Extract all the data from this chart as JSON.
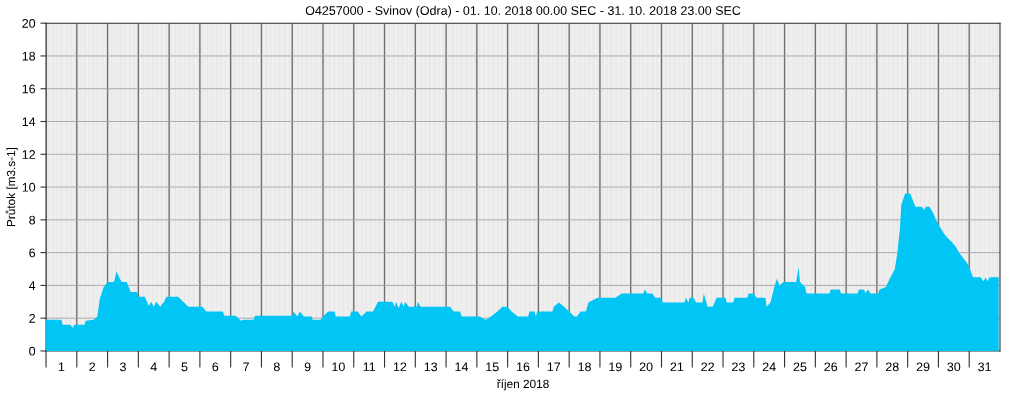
{
  "chart_data": {
    "type": "area",
    "title": "O4257000 - Svinov (Odra) - 01. 10. 2018 00.00 SEC - 31. 10. 2018 23.00 SEC",
    "xlabel": "říjen 2018",
    "ylabel": "Průtok [m3.s-1]",
    "series": [
      {
        "color": "#00c5f5",
        "x": [
          "2018-10-01T00:00",
          "2018-10-01T12:00",
          "2018-10-01T13:00",
          "2018-10-01T19:00",
          "2018-10-01T21:00",
          "2018-10-01T22:00",
          "2018-10-02T06:00",
          "2018-10-02T07:00",
          "2018-10-02T13:00",
          "2018-10-02T16:00",
          "2018-10-02T18:00",
          "2018-10-02T21:00",
          "2018-10-03T00:00",
          "2018-10-03T05:00",
          "2018-10-03T07:00",
          "2018-10-03T09:00",
          "2018-10-03T11:00",
          "2018-10-03T15:00",
          "2018-10-03T18:00",
          "2018-10-03T23:00",
          "2018-10-04T00:00",
          "2018-10-04T05:00",
          "2018-10-04T07:00",
          "2018-10-04T08:00",
          "2018-10-04T10:00",
          "2018-10-04T12:00",
          "2018-10-04T14:00",
          "2018-10-04T17:00",
          "2018-10-04T20:00",
          "2018-10-04T22:00",
          "2018-10-05T07:00",
          "2018-10-05T11:00",
          "2018-10-05T15:00",
          "2018-10-06T02:00",
          "2018-10-06T05:00",
          "2018-10-06T18:00",
          "2018-10-06T19:00",
          "2018-10-07T04:00",
          "2018-10-07T08:00",
          "2018-10-07T10:00",
          "2018-10-07T18:00",
          "2018-10-07T19:00",
          "2018-10-09T00:00",
          "2018-10-09T01:00",
          "2018-10-09T04:00",
          "2018-10-09T06:00",
          "2018-10-09T09:00",
          "2018-10-09T15:00",
          "2018-10-09T16:00",
          "2018-10-09T22:00",
          "2018-10-10T00:00",
          "2018-10-10T04:00",
          "2018-10-10T09:00",
          "2018-10-10T10:00",
          "2018-10-10T21:00",
          "2018-10-10T22:00",
          "2018-10-11T03:00",
          "2018-10-11T06:00",
          "2018-10-11T10:00",
          "2018-10-11T15:00",
          "2018-10-11T19:00",
          "2018-10-12T06:00",
          "2018-10-12T08:00",
          "2018-10-12T09:00",
          "2018-10-12T11:00",
          "2018-10-12T13:00",
          "2018-10-12T15:00",
          "2018-10-12T16:00",
          "2018-10-12T19:00",
          "2018-10-13T01:00",
          "2018-10-13T02:00",
          "2018-10-13T04:00",
          "2018-10-14T03:00",
          "2018-10-14T06:00",
          "2018-10-14T11:00",
          "2018-10-14T12:00",
          "2018-10-15T02:00",
          "2018-10-15T07:00",
          "2018-10-15T11:00",
          "2018-10-15T16:00",
          "2018-10-15T20:00",
          "2018-10-16T00:00",
          "2018-10-16T03:00",
          "2018-10-16T08:00",
          "2018-10-16T16:00",
          "2018-10-16T17:00",
          "2018-10-16T21:00",
          "2018-10-16T22:00",
          "2018-10-16T23:00",
          "2018-10-17T11:00",
          "2018-10-17T12:00",
          "2018-10-17T16:00",
          "2018-10-17T20:00",
          "2018-10-18T00:00",
          "2018-10-18T04:00",
          "2018-10-18T06:00",
          "2018-10-18T09:00",
          "2018-10-18T13:00",
          "2018-10-18T15:00",
          "2018-10-18T22:00",
          "2018-10-19T12:00",
          "2018-10-19T17:00",
          "2018-10-20T10:00",
          "2018-10-20T11:00",
          "2018-10-20T13:00",
          "2018-10-20T17:00",
          "2018-10-20T19:00",
          "2018-10-21T00:00",
          "2018-10-21T01:00",
          "2018-10-21T18:00",
          "2018-10-21T19:00",
          "2018-10-21T21:00",
          "2018-10-21T22:00",
          "2018-10-22T01:00",
          "2018-10-22T03:00",
          "2018-10-22T08:00",
          "2018-10-22T09:00",
          "2018-10-22T11:00",
          "2018-10-22T12:00",
          "2018-10-22T16:00",
          "2018-10-22T19:00",
          "2018-10-23T02:00",
          "2018-10-23T03:00",
          "2018-10-23T08:00",
          "2018-10-23T09:00",
          "2018-10-23T19:00",
          "2018-10-23T20:00",
          "2018-10-24T00:00",
          "2018-10-24T02:00",
          "2018-10-24T09:00",
          "2018-10-24T10:00",
          "2018-10-24T13:00",
          "2018-10-24T16:00",
          "2018-10-24T18:00",
          "2018-10-24T20:00",
          "2018-10-24T23:00",
          "2018-10-25T09:00",
          "2018-10-25T11:00",
          "2018-10-25T12:00",
          "2018-10-25T16:00",
          "2018-10-25T17:00",
          "2018-10-26T11:00",
          "2018-10-26T12:00",
          "2018-10-26T19:00",
          "2018-10-26T20:00",
          "2018-10-27T09:00",
          "2018-10-27T10:00",
          "2018-10-27T14:00",
          "2018-10-27T15:00",
          "2018-10-27T17:00",
          "2018-10-27T19:00",
          "2018-10-28T01:00",
          "2018-10-28T02:00",
          "2018-10-28T07:00",
          "2018-10-28T10:00",
          "2018-10-28T14:00",
          "2018-10-28T16:00",
          "2018-10-28T18:00",
          "2018-10-28T19:00",
          "2018-10-28T22:00",
          "2018-10-29T02:00",
          "2018-10-29T04:00",
          "2018-10-29T06:00",
          "2018-10-29T11:00",
          "2018-10-29T13:00",
          "2018-10-29T14:00",
          "2018-10-29T17:00",
          "2018-10-29T20:00",
          "2018-10-29T22:00",
          "2018-10-30T01:00",
          "2018-10-30T04:00",
          "2018-10-30T07:00",
          "2018-10-30T11:00",
          "2018-10-30T14:00",
          "2018-10-30T16:00",
          "2018-10-30T19:00",
          "2018-10-30T22:00",
          "2018-10-31T00:00",
          "2018-10-31T03:00",
          "2018-10-31T09:00",
          "2018-10-31T11:00",
          "2018-10-31T13:00",
          "2018-10-31T14:00",
          "2018-10-31T16:00",
          "2018-10-31T23:00"
        ],
        "values": [
          1.9,
          1.9,
          1.6,
          1.6,
          1.4,
          1.6,
          1.6,
          1.85,
          1.9,
          2.1,
          3.2,
          3.9,
          4.2,
          4.2,
          4.85,
          4.5,
          4.2,
          4.2,
          3.6,
          3.6,
          3.3,
          3.3,
          2.95,
          2.75,
          3.0,
          2.7,
          3.0,
          2.7,
          3.0,
          3.3,
          3.3,
          3.0,
          2.7,
          2.7,
          2.4,
          2.4,
          2.15,
          2.15,
          1.85,
          1.9,
          1.9,
          2.15,
          2.15,
          2.4,
          2.1,
          2.4,
          2.1,
          2.1,
          1.9,
          1.9,
          2.1,
          2.4,
          2.4,
          2.1,
          2.1,
          2.4,
          2.4,
          2.1,
          2.4,
          2.4,
          3.0,
          3.0,
          2.7,
          3.0,
          2.6,
          3.0,
          2.7,
          3.0,
          2.7,
          2.7,
          3.0,
          2.7,
          2.7,
          2.4,
          2.4,
          2.1,
          2.1,
          1.9,
          2.1,
          2.4,
          2.7,
          2.7,
          2.4,
          2.1,
          2.1,
          2.4,
          2.4,
          2.1,
          2.4,
          2.4,
          2.7,
          2.95,
          2.7,
          2.4,
          2.1,
          2.1,
          2.4,
          2.4,
          2.95,
          3.25,
          3.25,
          3.5,
          3.5,
          3.75,
          3.5,
          3.5,
          3.25,
          3.25,
          2.95,
          2.95,
          3.25,
          2.95,
          3.25,
          3.25,
          2.95,
          2.95,
          3.5,
          2.95,
          2.7,
          2.7,
          3.25,
          3.25,
          2.95,
          2.95,
          3.25,
          3.25,
          3.5,
          3.5,
          3.25,
          3.25,
          2.7,
          2.95,
          3.9,
          4.4,
          4.0,
          4.2,
          4.2,
          5.1,
          4.2,
          3.9,
          3.5,
          3.5,
          3.75,
          3.75,
          3.5,
          3.5,
          3.75,
          3.75,
          3.5,
          3.75,
          3.5,
          3.5,
          3.75,
          3.9,
          4.4,
          5.0,
          6.0,
          7.5,
          8.9,
          9.6,
          9.6,
          9.2,
          8.8,
          8.8,
          8.6,
          8.8,
          8.8,
          8.4,
          8.0,
          7.6,
          7.2,
          6.9,
          6.6,
          6.3,
          6.0,
          5.7,
          5.4,
          5.1,
          4.5,
          4.5,
          4.25,
          4.5,
          4.25,
          4.5,
          4.5
        ]
      }
    ],
    "xlim": [
      "2018-10-01T00:00",
      "2018-11-01T00:00"
    ],
    "xticks": [
      {
        "value": "2018-10-01T00:00",
        "label": null
      },
      {
        "value": "2018-10-02T00:00",
        "label": null
      },
      {
        "value": "2018-10-03T00:00",
        "label": null
      },
      {
        "value": "2018-10-04T00:00",
        "label": null
      },
      {
        "value": "2018-10-05T00:00",
        "label": null
      },
      {
        "value": "2018-10-06T00:00",
        "label": null
      },
      {
        "value": "2018-10-07T00:00",
        "label": null
      },
      {
        "value": "2018-10-08T00:00",
        "label": null
      },
      {
        "value": "2018-10-09T00:00",
        "label": null
      },
      {
        "value": "2018-10-10T00:00",
        "label": null
      },
      {
        "value": "2018-10-11T00:00",
        "label": null
      },
      {
        "value": "2018-10-12T00:00",
        "label": null
      },
      {
        "value": "2018-10-13T00:00",
        "label": null
      },
      {
        "value": "2018-10-14T00:00",
        "label": null
      },
      {
        "value": "2018-10-15T00:00",
        "label": null
      },
      {
        "value": "2018-10-16T00:00",
        "label": null
      },
      {
        "value": "2018-10-17T00:00",
        "label": null
      },
      {
        "value": "2018-10-18T00:00",
        "label": null
      },
      {
        "value": "2018-10-19T00:00",
        "label": null
      },
      {
        "value": "2018-10-20T00:00",
        "label": null
      },
      {
        "value": "2018-10-21T00:00",
        "label": null
      },
      {
        "value": "2018-10-22T00:00",
        "label": null
      },
      {
        "value": "2018-10-23T00:00",
        "label": null
      },
      {
        "value": "2018-10-24T00:00",
        "label": null
      },
      {
        "value": "2018-10-25T00:00",
        "label": null
      },
      {
        "value": "2018-10-26T00:00",
        "label": null
      },
      {
        "value": "2018-10-27T00:00",
        "label": null
      },
      {
        "value": "2018-10-28T00:00",
        "label": null
      },
      {
        "value": "2018-10-29T00:00",
        "label": null
      },
      {
        "value": "2018-10-30T00:00",
        "label": null
      },
      {
        "value": "2018-10-31T00:00",
        "label": null
      },
      {
        "value": "2018-10-01T12:00",
        "label": "1"
      },
      {
        "value": "2018-10-02T12:00",
        "label": "2"
      },
      {
        "value": "2018-10-03T12:00",
        "label": "3"
      },
      {
        "value": "2018-10-04T12:00",
        "label": "4"
      },
      {
        "value": "2018-10-05T12:00",
        "label": "5"
      },
      {
        "value": "2018-10-06T12:00",
        "label": "6"
      },
      {
        "value": "2018-10-07T12:00",
        "label": "7"
      },
      {
        "value": "2018-10-08T12:00",
        "label": "8"
      },
      {
        "value": "2018-10-09T12:00",
        "label": "9"
      },
      {
        "value": "2018-10-10T12:00",
        "label": "10"
      },
      {
        "value": "2018-10-11T12:00",
        "label": "11"
      },
      {
        "value": "2018-10-12T12:00",
        "label": "12"
      },
      {
        "value": "2018-10-13T12:00",
        "label": "13"
      },
      {
        "value": "2018-10-14T12:00",
        "label": "14"
      },
      {
        "value": "2018-10-15T12:00",
        "label": "15"
      },
      {
        "value": "2018-10-16T12:00",
        "label": "16"
      },
      {
        "value": "2018-10-17T12:00",
        "label": "17"
      },
      {
        "value": "2018-10-18T12:00",
        "label": "18"
      },
      {
        "value": "2018-10-19T12:00",
        "label": "19"
      },
      {
        "value": "2018-10-20T12:00",
        "label": "20"
      },
      {
        "value": "2018-10-21T12:00",
        "label": "21"
      },
      {
        "value": "2018-10-22T12:00",
        "label": "22"
      },
      {
        "value": "2018-10-23T12:00",
        "label": "23"
      },
      {
        "value": "2018-10-24T12:00",
        "label": "24"
      },
      {
        "value": "2018-10-25T12:00",
        "label": "25"
      },
      {
        "value": "2018-10-26T12:00",
        "label": "26"
      },
      {
        "value": "2018-10-27T12:00",
        "label": "27"
      },
      {
        "value": "2018-10-28T12:00",
        "label": "28"
      },
      {
        "value": "2018-10-29T12:00",
        "label": "29"
      },
      {
        "value": "2018-10-30T12:00",
        "label": "30"
      },
      {
        "value": "2018-10-31T12:00",
        "label": "31"
      }
    ],
    "ylim": [
      0,
      20
    ],
    "yticks": [
      0,
      2,
      4,
      6,
      8,
      10,
      12,
      14,
      16,
      18,
      20
    ],
    "grid": true
  }
}
